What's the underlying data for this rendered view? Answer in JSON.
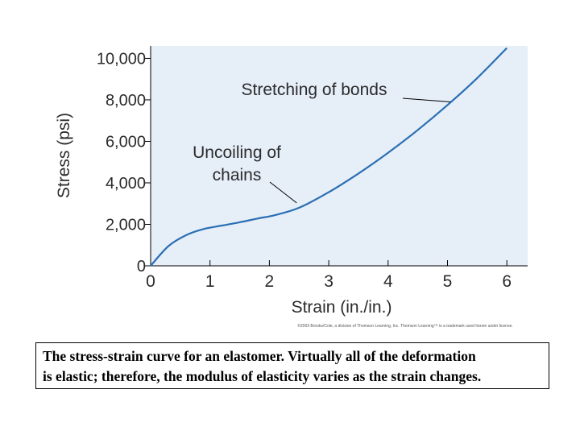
{
  "chart_data": {
    "type": "line",
    "title": "",
    "xlabel": "Strain (in./in.)",
    "ylabel": "Stress (psi)",
    "xlim": [
      0,
      6.35
    ],
    "ylim": [
      0,
      10600
    ],
    "x_ticks": [
      0,
      1,
      2,
      3,
      4,
      5,
      6
    ],
    "x_tick_labels": [
      "0",
      "1",
      "2",
      "3",
      "4",
      "5",
      "6"
    ],
    "y_ticks": [
      0,
      2000,
      4000,
      6000,
      8000,
      10000
    ],
    "y_tick_labels": [
      "0",
      "2,000",
      "4,000",
      "6,000",
      "8,000",
      "10,000"
    ],
    "grid": false,
    "plot_background": "#e6eef8",
    "series": [
      {
        "color": "#2a6fb3",
        "x": [
          0,
          0.3,
          0.6,
          0.9,
          1.2,
          1.5,
          1.8,
          2.1,
          2.5,
          3.0,
          3.5,
          4.0,
          4.5,
          5.0,
          5.5,
          6.0
        ],
        "y": [
          0,
          950,
          1480,
          1780,
          1940,
          2100,
          2280,
          2450,
          2800,
          3550,
          4450,
          5450,
          6550,
          7750,
          9050,
          10500
        ]
      }
    ],
    "annotations": [
      {
        "text": "Stretching of bonds",
        "points_to": [
          5.05,
          7900
        ]
      },
      {
        "text_lines": [
          "Uncoiling of",
          "chains"
        ],
        "points_to": [
          2.5,
          2800
        ]
      }
    ]
  },
  "credit": "©2003 Brooks/Cole, a division of Thomson Learning, Inc.  Thomson Learning™ is a trademark used herein under license.",
  "caption": {
    "line1": "The stress-strain curve for an elastomer. Virtually all of the deformation",
    "line2": "is elastic; therefore, the modulus of elasticity varies as the strain changes."
  },
  "colors": {
    "axis": "#000000",
    "text": "#2b2b2b"
  }
}
